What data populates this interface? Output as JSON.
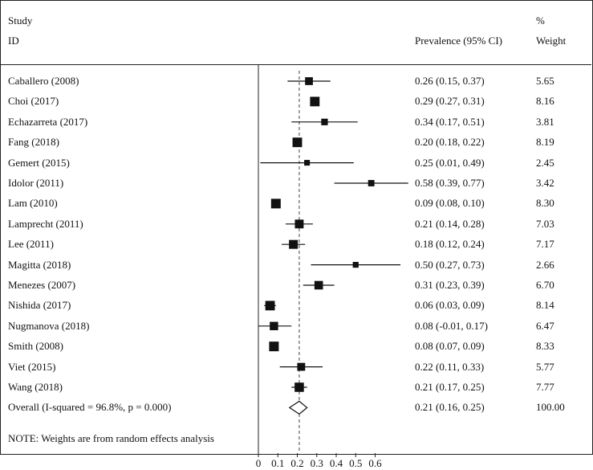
{
  "header": {
    "study_line1": "Study",
    "study_line2": "ID",
    "estimate_label": "Prevalence (95% CI)",
    "weight_line1": "%",
    "weight_line2": "Weight"
  },
  "note": "NOTE: Weights are from random effects analysis",
  "chart_data": {
    "type": "forest",
    "xlim": [
      0,
      0.6
    ],
    "x_ticks": [
      0,
      0.1,
      0.2,
      0.3,
      0.4,
      0.5,
      0.6
    ],
    "x_tick_labels": [
      "0",
      "0.1",
      "0.2",
      "0.3",
      "0.4",
      "0.5",
      "0.6"
    ],
    "reference_line": 0.21,
    "studies": [
      {
        "study": "Caballero (2008)",
        "estimate": 0.26,
        "lower": 0.15,
        "upper": 0.37,
        "ci_text": "0.26 (0.15, 0.37)",
        "weight": 5.65,
        "weight_text": "5.65"
      },
      {
        "study": "Choi (2017)",
        "estimate": 0.29,
        "lower": 0.27,
        "upper": 0.31,
        "ci_text": "0.29 (0.27, 0.31)",
        "weight": 8.16,
        "weight_text": "8.16"
      },
      {
        "study": "Echazarreta (2017)",
        "estimate": 0.34,
        "lower": 0.17,
        "upper": 0.51,
        "ci_text": "0.34 (0.17, 0.51)",
        "weight": 3.81,
        "weight_text": "3.81"
      },
      {
        "study": "Fang (2018)",
        "estimate": 0.2,
        "lower": 0.18,
        "upper": 0.22,
        "ci_text": "0.20 (0.18, 0.22)",
        "weight": 8.19,
        "weight_text": "8.19"
      },
      {
        "study": "Gemert (2015)",
        "estimate": 0.25,
        "lower": 0.01,
        "upper": 0.49,
        "ci_text": "0.25 (0.01, 0.49)",
        "weight": 2.45,
        "weight_text": "2.45"
      },
      {
        "study": "Idolor (2011)",
        "estimate": 0.58,
        "lower": 0.39,
        "upper": 0.77,
        "ci_text": "0.58 (0.39, 0.77)",
        "weight": 3.42,
        "weight_text": "3.42"
      },
      {
        "study": "Lam (2010)",
        "estimate": 0.09,
        "lower": 0.08,
        "upper": 0.1,
        "ci_text": "0.09 (0.08, 0.10)",
        "weight": 8.3,
        "weight_text": "8.30"
      },
      {
        "study": "Lamprecht (2011)",
        "estimate": 0.21,
        "lower": 0.14,
        "upper": 0.28,
        "ci_text": "0.21 (0.14, 0.28)",
        "weight": 7.03,
        "weight_text": "7.03"
      },
      {
        "study": "Lee (2011)",
        "estimate": 0.18,
        "lower": 0.12,
        "upper": 0.24,
        "ci_text": "0.18 (0.12, 0.24)",
        "weight": 7.17,
        "weight_text": "7.17"
      },
      {
        "study": "Magitta (2018)",
        "estimate": 0.5,
        "lower": 0.27,
        "upper": 0.73,
        "ci_text": "0.50 (0.27, 0.73)",
        "weight": 2.66,
        "weight_text": "2.66"
      },
      {
        "study": "Menezes (2007)",
        "estimate": 0.31,
        "lower": 0.23,
        "upper": 0.39,
        "ci_text": "0.31 (0.23, 0.39)",
        "weight": 6.7,
        "weight_text": "6.70"
      },
      {
        "study": "Nishida (2017)",
        "estimate": 0.06,
        "lower": 0.03,
        "upper": 0.09,
        "ci_text": "0.06 (0.03, 0.09)",
        "weight": 8.14,
        "weight_text": "8.14"
      },
      {
        "study": "Nugmanova (2018)",
        "estimate": 0.08,
        "lower": -0.01,
        "upper": 0.17,
        "ci_text": "0.08 (-0.01, 0.17)",
        "weight": 6.47,
        "weight_text": "6.47"
      },
      {
        "study": "Smith (2008)",
        "estimate": 0.08,
        "lower": 0.07,
        "upper": 0.09,
        "ci_text": "0.08 (0.07, 0.09)",
        "weight": 8.33,
        "weight_text": "8.33"
      },
      {
        "study": "Viet (2015)",
        "estimate": 0.22,
        "lower": 0.11,
        "upper": 0.33,
        "ci_text": "0.22 (0.11, 0.33)",
        "weight": 5.77,
        "weight_text": "5.77"
      },
      {
        "study": "Wang (2018)",
        "estimate": 0.21,
        "lower": 0.17,
        "upper": 0.25,
        "ci_text": "0.21 (0.17, 0.25)",
        "weight": 7.77,
        "weight_text": "7.77"
      }
    ],
    "overall": {
      "label": "Overall  (I-squared = 96.8%, p = 0.000)",
      "estimate": 0.21,
      "lower": 0.16,
      "upper": 0.25,
      "ci_text": "0.21 (0.16, 0.25)",
      "weight_text": "100.00"
    }
  }
}
